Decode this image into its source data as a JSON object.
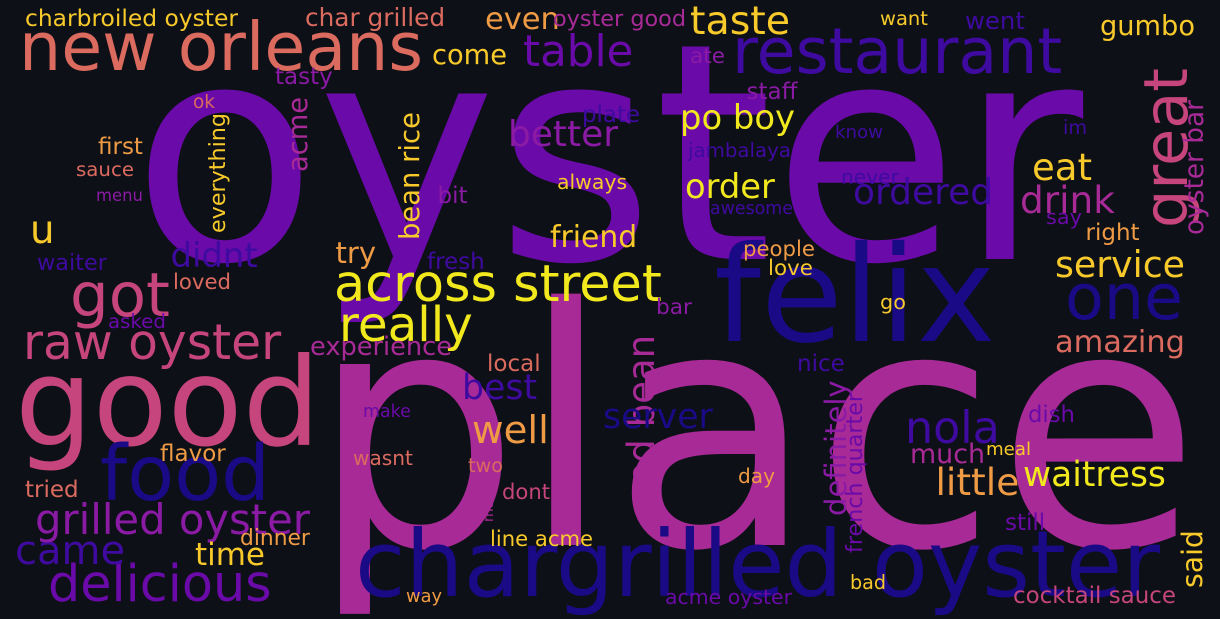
{
  "palette": {
    "background": "#0d1017",
    "darkest": "#1a0a85",
    "indigo": "#3f0aa0",
    "violet": "#6a0aa8",
    "purple": "#8b1aa5",
    "magenta": "#a82a96",
    "rose": "#c5457c",
    "coral": "#db6a5f",
    "orange": "#ef9b45",
    "gold": "#f7c92a",
    "yellow": "#f2e81e"
  },
  "words": [
    {
      "text": "oyster",
      "color": "violet"
    },
    {
      "text": "place",
      "color": "magenta"
    },
    {
      "text": "felix",
      "color": "darkest"
    },
    {
      "text": "good",
      "color": "rose"
    },
    {
      "text": "restaurant",
      "color": "indigo"
    },
    {
      "text": "chargrilled oyster",
      "color": "darkest"
    },
    {
      "text": "new orleans",
      "color": "coral"
    },
    {
      "text": "food",
      "color": "darkest"
    },
    {
      "text": "great",
      "color": "rose"
    },
    {
      "text": "got",
      "color": "rose"
    },
    {
      "text": "one",
      "color": "darkest"
    },
    {
      "text": "across street",
      "color": "yellow"
    },
    {
      "text": "raw oyster",
      "color": "rose"
    },
    {
      "text": "delicious",
      "color": "violet"
    },
    {
      "text": "came",
      "color": "indigo"
    },
    {
      "text": "grilled oyster",
      "color": "purple"
    },
    {
      "text": "really",
      "color": "yellow"
    },
    {
      "text": "table",
      "color": "violet"
    },
    {
      "text": "red bean",
      "color": "magenta"
    },
    {
      "text": "nola",
      "color": "indigo"
    },
    {
      "text": "bean rice",
      "color": "gold"
    },
    {
      "text": "po boy",
      "color": "yellow"
    },
    {
      "text": "better",
      "color": "purple"
    },
    {
      "text": "ordered",
      "color": "indigo"
    },
    {
      "text": "drink",
      "color": "magenta"
    },
    {
      "text": "eat",
      "color": "gold"
    },
    {
      "text": "order",
      "color": "yellow"
    },
    {
      "text": "taste",
      "color": "gold"
    },
    {
      "text": "gumbo",
      "color": "gold"
    },
    {
      "text": "even",
      "color": "orange"
    },
    {
      "text": "come",
      "color": "gold"
    },
    {
      "text": "service",
      "color": "gold"
    },
    {
      "text": "amazing",
      "color": "coral"
    },
    {
      "text": "much",
      "color": "magenta"
    },
    {
      "text": "little",
      "color": "orange"
    },
    {
      "text": "well",
      "color": "orange"
    },
    {
      "text": "best",
      "color": "indigo"
    },
    {
      "text": "server",
      "color": "darkest"
    },
    {
      "text": "time",
      "color": "gold"
    },
    {
      "text": "didnt",
      "color": "indigo"
    },
    {
      "text": "oyster bar",
      "color": "magenta"
    },
    {
      "text": "u",
      "color": "gold"
    },
    {
      "text": "waitress",
      "color": "yellow"
    },
    {
      "text": "friend",
      "color": "gold"
    },
    {
      "text": "try",
      "color": "orange"
    },
    {
      "text": "acme",
      "color": "magenta"
    },
    {
      "text": "went",
      "color": "indigo"
    },
    {
      "text": "experience",
      "color": "magenta"
    },
    {
      "text": "definitely",
      "color": "purple"
    },
    {
      "text": "said",
      "color": "gold"
    },
    {
      "text": "charbroiled oyster",
      "color": "gold"
    },
    {
      "text": "char grilled",
      "color": "coral"
    },
    {
      "text": "oyster good",
      "color": "magenta"
    },
    {
      "text": "want",
      "color": "gold"
    },
    {
      "text": "tasty",
      "color": "purple"
    },
    {
      "text": "ate",
      "color": "purple"
    },
    {
      "text": "ok",
      "color": "coral"
    },
    {
      "text": "staff",
      "color": "purple"
    },
    {
      "text": "plate",
      "color": "indigo"
    },
    {
      "text": "know",
      "color": "indigo"
    },
    {
      "text": "im",
      "color": "indigo"
    },
    {
      "text": "first",
      "color": "orange"
    },
    {
      "text": "jambalaya",
      "color": "indigo"
    },
    {
      "text": "sauce",
      "color": "coral"
    },
    {
      "text": "everything",
      "color": "gold"
    },
    {
      "text": "always",
      "color": "gold"
    },
    {
      "text": "never",
      "color": "indigo"
    },
    {
      "text": "menu",
      "color": "purple"
    },
    {
      "text": "bit",
      "color": "purple"
    },
    {
      "text": "awesome",
      "color": "indigo"
    },
    {
      "text": "say",
      "color": "violet"
    },
    {
      "text": "right",
      "color": "orange"
    },
    {
      "text": "waiter",
      "color": "indigo"
    },
    {
      "text": "fresh",
      "color": "indigo"
    },
    {
      "text": "people",
      "color": "orange"
    },
    {
      "text": "love",
      "color": "gold"
    },
    {
      "text": "loved",
      "color": "coral"
    },
    {
      "text": "bar",
      "color": "purple"
    },
    {
      "text": "go",
      "color": "gold"
    },
    {
      "text": "asked",
      "color": "violet"
    },
    {
      "text": "local",
      "color": "coral"
    },
    {
      "text": "nice",
      "color": "indigo"
    },
    {
      "text": "make",
      "color": "violet"
    },
    {
      "text": "french quarter",
      "color": "violet"
    },
    {
      "text": "dish",
      "color": "violet"
    },
    {
      "text": "meal",
      "color": "gold"
    },
    {
      "text": "flavor",
      "color": "orange"
    },
    {
      "text": "wasnt",
      "color": "coral"
    },
    {
      "text": "two",
      "color": "coral"
    },
    {
      "text": "day",
      "color": "orange"
    },
    {
      "text": "tried",
      "color": "coral"
    },
    {
      "text": "dont",
      "color": "rose"
    },
    {
      "text": "made",
      "color": "magenta"
    },
    {
      "text": "still",
      "color": "violet"
    },
    {
      "text": "dinner",
      "color": "orange"
    },
    {
      "text": "line acme",
      "color": "gold"
    },
    {
      "text": "bad",
      "color": "gold"
    },
    {
      "text": "way",
      "color": "orange"
    },
    {
      "text": "acme oyster",
      "color": "violet"
    },
    {
      "text": "cocktail sauce",
      "color": "rose"
    }
  ]
}
